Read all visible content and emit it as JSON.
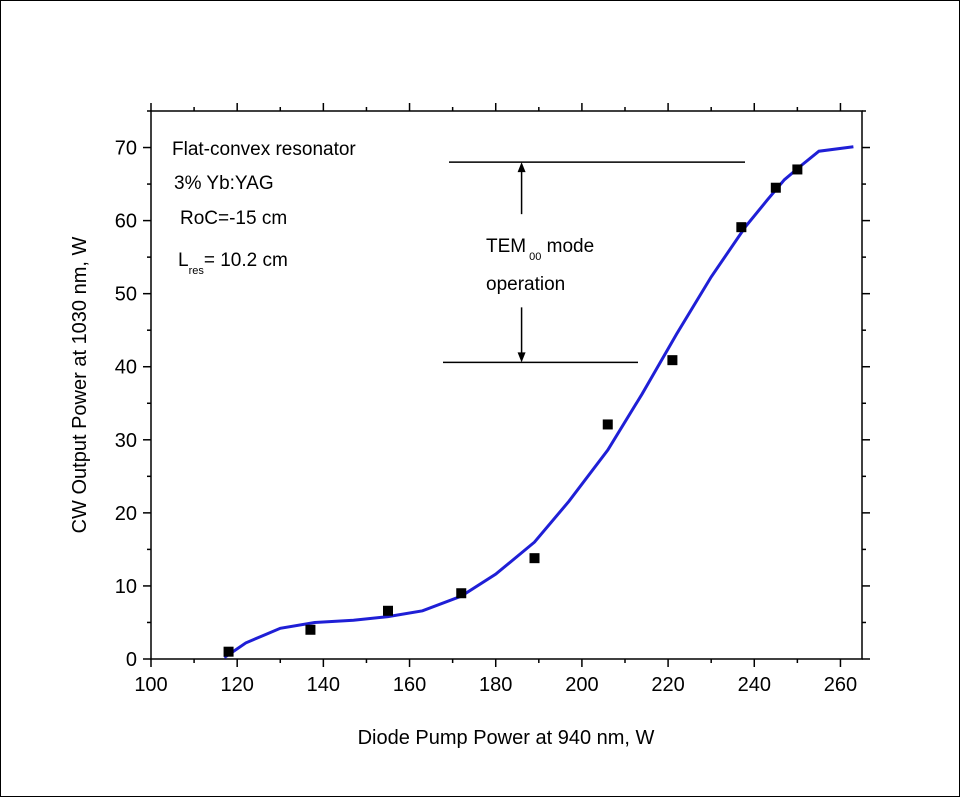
{
  "chart_data": {
    "type": "scatter",
    "xlabel": "Diode Pump Power at 940 nm, W",
    "ylabel": "CW Output Power at 1030 nm, W",
    "xlim": [
      100,
      265
    ],
    "ylim": [
      0,
      75
    ],
    "xticks": [
      100,
      120,
      140,
      160,
      180,
      200,
      220,
      240,
      260
    ],
    "yticks": [
      0,
      10,
      20,
      30,
      40,
      50,
      60,
      70
    ],
    "grid": false,
    "series": [
      {
        "kind": "markers",
        "marker": "square",
        "color": "#000000",
        "x": [
          118,
          137,
          155,
          172,
          189,
          206,
          221,
          237,
          245,
          250
        ],
        "y": [
          1.0,
          4.0,
          6.6,
          9.0,
          13.8,
          32.1,
          40.9,
          59.1,
          64.5,
          67.0
        ]
      },
      {
        "kind": "line",
        "color": "#1f1fd6",
        "x": [
          117,
          119,
          122,
          130,
          138,
          147,
          155,
          163,
          172,
          180,
          189,
          197,
          206,
          214,
          222,
          230,
          238,
          243,
          247,
          251,
          255,
          263
        ],
        "y": [
          0.2,
          1.0,
          2.2,
          4.2,
          5.0,
          5.3,
          5.8,
          6.6,
          8.6,
          11.6,
          16.0,
          21.6,
          28.6,
          36.3,
          44.5,
          52.3,
          59.2,
          62.8,
          65.6,
          67.6,
          69.5,
          70.1
        ]
      }
    ],
    "annotations": {
      "resonator": "Flat-convex resonator",
      "crystal": "3% Yb:YAG",
      "roc": "RoC=-15 cm",
      "lres_main": "L",
      "lres_sub": "res",
      "lres_value": "= 10.2 cm",
      "tem_main": "TEM",
      "tem_sub": "00",
      "tem_rest": " mode",
      "tem_line2": "operation",
      "upper_level": 68,
      "lower_level": 40.6,
      "arrow_x": 186
    }
  }
}
